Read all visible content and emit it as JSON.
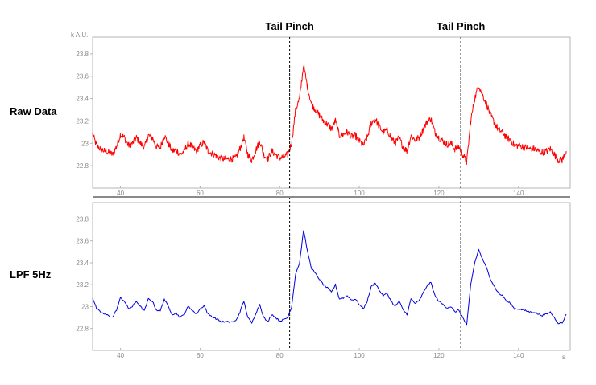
{
  "y_unit": "k A.U.",
  "x_unit": "s",
  "chart_data": [
    {
      "type": "line",
      "row_label": "Raw Data",
      "color": "#ff0000",
      "noisy": true,
      "xlim": [
        33,
        153
      ],
      "ylim": [
        22.6,
        23.95
      ],
      "xticks": [
        40,
        60,
        80,
        100,
        120,
        140
      ],
      "yticks": [
        22.8,
        23.0,
        23.2,
        23.4,
        23.6,
        23.8
      ],
      "ytick_labels": [
        "22.8",
        "23",
        "23.2",
        "23.4",
        "23.6",
        "23.8"
      ],
      "series": [
        {
          "x": [
            33,
            34,
            35,
            36,
            37,
            38,
            39,
            40,
            41,
            42,
            43,
            44,
            45,
            46,
            47,
            48,
            49,
            50,
            51,
            52,
            53,
            54,
            55,
            56,
            57,
            58,
            59,
            60,
            61,
            62,
            63,
            64,
            65,
            66,
            67,
            68,
            69,
            70,
            71,
            72,
            73,
            74,
            75,
            76,
            77,
            78,
            79,
            80,
            81,
            82,
            83,
            84,
            85,
            86,
            87,
            88,
            89,
            90,
            91,
            92,
            93,
            94,
            95,
            96,
            97,
            98,
            99,
            100,
            101,
            102,
            103,
            104,
            105,
            106,
            107,
            108,
            109,
            110,
            111,
            112,
            113,
            114,
            115,
            116,
            117,
            118,
            119,
            120,
            121,
            122,
            123,
            124,
            125,
            126,
            127,
            128,
            129,
            130,
            131,
            132,
            133,
            134,
            135,
            136,
            137,
            138,
            139,
            140,
            141,
            142,
            143,
            144,
            145,
            146,
            147,
            148,
            149,
            150,
            151,
            152
          ],
          "values": [
            23.08,
            22.98,
            22.95,
            22.93,
            22.92,
            22.9,
            22.97,
            23.08,
            23.05,
            22.98,
            23.0,
            23.05,
            23.0,
            22.96,
            23.07,
            23.05,
            22.97,
            22.96,
            23.07,
            23.0,
            22.93,
            22.94,
            22.9,
            22.93,
            23.0,
            22.97,
            22.93,
            22.98,
            23.01,
            22.93,
            22.91,
            22.89,
            22.87,
            22.86,
            22.86,
            22.86,
            22.87,
            22.95,
            23.05,
            22.9,
            22.85,
            22.94,
            23.02,
            22.9,
            22.86,
            22.93,
            22.9,
            22.87,
            22.88,
            22.9,
            23.0,
            23.3,
            23.4,
            23.7,
            23.5,
            23.35,
            23.3,
            23.25,
            23.2,
            23.17,
            23.13,
            23.2,
            23.07,
            23.08,
            23.1,
            23.06,
            23.07,
            23.02,
            22.98,
            23.05,
            23.18,
            23.22,
            23.15,
            23.1,
            23.12,
            23.05,
            23.0,
            23.05,
            22.97,
            22.93,
            23.07,
            23.03,
            23.05,
            23.12,
            23.19,
            23.22,
            23.1,
            23.05,
            23.02,
            22.99,
            23.0,
            22.95,
            22.97,
            22.9,
            22.83,
            23.2,
            23.4,
            23.52,
            23.43,
            23.35,
            23.25,
            23.18,
            23.12,
            23.1,
            23.05,
            23.03,
            22.98,
            22.98,
            22.97,
            22.96,
            22.95,
            22.95,
            22.93,
            22.92,
            22.93,
            22.95,
            22.9,
            22.85,
            22.85,
            22.93
          ]
        }
      ],
      "events": [
        {
          "x": 82.5,
          "label": "Tail Pinch"
        },
        {
          "x": 125.5,
          "label": "Tail Pinch"
        }
      ]
    },
    {
      "type": "line",
      "row_label": "LPF 5Hz",
      "color": "#0000e0",
      "noisy": false,
      "xlim": [
        33,
        153
      ],
      "ylim": [
        22.6,
        23.95
      ],
      "xticks": [
        40,
        60,
        80,
        100,
        120,
        140
      ],
      "yticks": [
        22.8,
        23.0,
        23.2,
        23.4,
        23.6,
        23.8
      ],
      "ytick_labels": [
        "22.8",
        "23",
        "23.2",
        "23.4",
        "23.6",
        "23.8"
      ],
      "series": [
        {
          "x": [
            33,
            34,
            35,
            36,
            37,
            38,
            39,
            40,
            41,
            42,
            43,
            44,
            45,
            46,
            47,
            48,
            49,
            50,
            51,
            52,
            53,
            54,
            55,
            56,
            57,
            58,
            59,
            60,
            61,
            62,
            63,
            64,
            65,
            66,
            67,
            68,
            69,
            70,
            71,
            72,
            73,
            74,
            75,
            76,
            77,
            78,
            79,
            80,
            81,
            82,
            83,
            84,
            85,
            86,
            87,
            88,
            89,
            90,
            91,
            92,
            93,
            94,
            95,
            96,
            97,
            98,
            99,
            100,
            101,
            102,
            103,
            104,
            105,
            106,
            107,
            108,
            109,
            110,
            111,
            112,
            113,
            114,
            115,
            116,
            117,
            118,
            119,
            120,
            121,
            122,
            123,
            124,
            125,
            126,
            127,
            128,
            129,
            130,
            131,
            132,
            133,
            134,
            135,
            136,
            137,
            138,
            139,
            140,
            141,
            142,
            143,
            144,
            145,
            146,
            147,
            148,
            149,
            150,
            151,
            152
          ],
          "values": [
            23.08,
            22.98,
            22.95,
            22.93,
            22.92,
            22.9,
            22.97,
            23.08,
            23.05,
            22.98,
            23.0,
            23.05,
            23.0,
            22.96,
            23.07,
            23.05,
            22.97,
            22.96,
            23.07,
            23.0,
            22.93,
            22.94,
            22.9,
            22.93,
            23.0,
            22.97,
            22.93,
            22.98,
            23.01,
            22.93,
            22.91,
            22.89,
            22.87,
            22.86,
            22.86,
            22.86,
            22.87,
            22.95,
            23.05,
            22.9,
            22.85,
            22.94,
            23.02,
            22.9,
            22.86,
            22.93,
            22.9,
            22.87,
            22.88,
            22.9,
            23.0,
            23.3,
            23.4,
            23.7,
            23.5,
            23.35,
            23.3,
            23.25,
            23.2,
            23.17,
            23.13,
            23.2,
            23.07,
            23.08,
            23.1,
            23.06,
            23.07,
            23.02,
            22.98,
            23.05,
            23.18,
            23.22,
            23.15,
            23.1,
            23.12,
            23.05,
            23.0,
            23.05,
            22.97,
            22.93,
            23.07,
            23.03,
            23.05,
            23.12,
            23.19,
            23.22,
            23.1,
            23.05,
            23.02,
            22.99,
            23.0,
            22.95,
            22.97,
            22.9,
            22.83,
            23.2,
            23.4,
            23.52,
            23.43,
            23.35,
            23.25,
            23.18,
            23.12,
            23.1,
            23.05,
            23.03,
            22.98,
            22.98,
            22.97,
            22.96,
            22.95,
            22.95,
            22.93,
            22.92,
            22.93,
            22.95,
            22.9,
            22.85,
            22.85,
            22.93
          ]
        }
      ],
      "events": [
        {
          "x": 82.5,
          "label": ""
        },
        {
          "x": 125.5,
          "label": ""
        }
      ]
    }
  ]
}
